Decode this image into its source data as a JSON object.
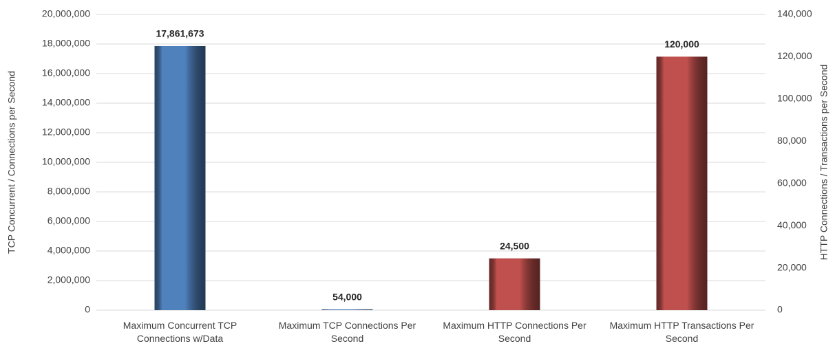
{
  "chart_data": {
    "type": "bar",
    "categories": [
      "Maximum Concurrent TCP Connections w/Data",
      "Maximum TCP Connections Per Second",
      "Maximum HTTP Connections Per Second",
      "Maximum HTTP Transactions Per Second"
    ],
    "series": [
      {
        "color": "#4f81bd",
        "axis": "y",
        "values": [
          17861673,
          54000,
          null,
          null
        ],
        "value_labels": [
          "17,861,673",
          "54,000",
          null,
          null
        ]
      },
      {
        "color": "#c0504d",
        "axis": "y2",
        "values": [
          null,
          null,
          24500,
          120000
        ],
        "value_labels": [
          null,
          null,
          "24,500",
          "120,000"
        ]
      }
    ],
    "ylabel": "TCP Concurrent / Connections per Second",
    "y2label": "HTTP Connections / Transactions per Second",
    "ylim": [
      0,
      20000000
    ],
    "yticks": [
      0,
      {
        "value": 2000000,
        "label": "2,000,000"
      },
      {
        "value": 4000000,
        "label": "4,000,000"
      },
      {
        "value": 6000000,
        "label": "6,000,000"
      },
      {
        "value": 8000000,
        "label": "8,000,000"
      },
      {
        "value": 10000000,
        "label": "10,000,000"
      },
      {
        "value": 12000000,
        "label": "12,000,000"
      },
      {
        "value": 14000000,
        "label": "14,000,000"
      },
      {
        "value": 16000000,
        "label": "16,000,000"
      },
      {
        "value": 18000000,
        "label": "18,000,000"
      },
      {
        "value": 20000000,
        "label": "20,000,000"
      }
    ],
    "y2lim": [
      0,
      140000
    ],
    "y2ticks": [
      0,
      {
        "value": 20000,
        "label": "20,000"
      },
      {
        "value": 40000,
        "label": "40,000"
      },
      {
        "value": 60000,
        "label": "60,000"
      },
      {
        "value": 80000,
        "label": "80,000"
      },
      {
        "value": 100000,
        "label": "100,000"
      },
      {
        "value": 120000,
        "label": "120,000"
      },
      {
        "value": 140000,
        "label": "140,000"
      }
    ],
    "grid": true
  }
}
